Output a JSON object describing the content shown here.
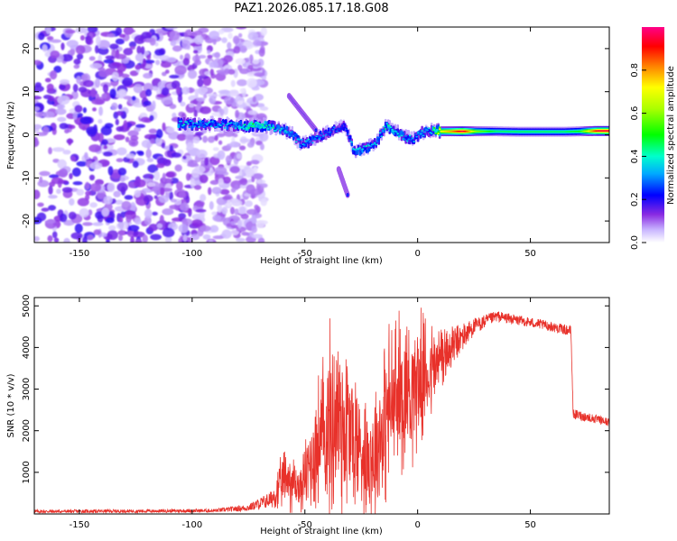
{
  "title": "PAZ1.2026.085.17.18.G08",
  "chart_data": [
    {
      "type": "heatmap",
      "xlabel": "Height of straight line (km)",
      "ylabel": "Frequency (Hz)",
      "xlim": [
        -170,
        85
      ],
      "ylim": [
        -25,
        25
      ],
      "xticks": [
        -150,
        -100,
        -50,
        0,
        50
      ],
      "xtick_labels": [
        "-150",
        "-100",
        "-50",
        "0",
        "50"
      ],
      "yticks": [
        -20,
        -10,
        0,
        10,
        20
      ],
      "ytick_labels": [
        "-20",
        "-10",
        "0",
        "10",
        "20"
      ],
      "noise_region_x": [
        -170,
        -80
      ],
      "ridge": [
        {
          "x": -106,
          "f": 2.5,
          "a": 0.35
        },
        {
          "x": -98,
          "f": 2.5,
          "a": 0.3
        },
        {
          "x": -90,
          "f": 2.5,
          "a": 0.28
        },
        {
          "x": -82,
          "f": 2.3,
          "a": 0.3
        },
        {
          "x": -75,
          "f": 2.0,
          "a": 0.4
        },
        {
          "x": -68,
          "f": 2.2,
          "a": 0.4
        },
        {
          "x": -62,
          "f": 1.5,
          "a": 0.32
        },
        {
          "x": -56,
          "f": 0.5,
          "a": 0.3
        },
        {
          "x": -52,
          "f": -2.0,
          "a": 0.3
        },
        {
          "x": -48,
          "f": -1.5,
          "a": 0.3
        },
        {
          "x": -44,
          "f": -0.5,
          "a": 0.28
        },
        {
          "x": -40,
          "f": 0.5,
          "a": 0.25
        },
        {
          "x": -36,
          "f": 1.5,
          "a": 0.25
        },
        {
          "x": -32,
          "f": 2.0,
          "a": 0.22
        },
        {
          "x": -28,
          "f": -4.0,
          "a": 0.32
        },
        {
          "x": -22,
          "f": -3.0,
          "a": 0.33
        },
        {
          "x": -18,
          "f": -1.5,
          "a": 0.3
        },
        {
          "x": -14,
          "f": 2.0,
          "a": 0.35
        },
        {
          "x": -10,
          "f": 1.0,
          "a": 0.35
        },
        {
          "x": -6,
          "f": -0.5,
          "a": 0.3
        },
        {
          "x": -2,
          "f": -1.0,
          "a": 0.3
        },
        {
          "x": 2,
          "f": 0.5,
          "a": 0.3
        },
        {
          "x": 6,
          "f": 1.0,
          "a": 0.3
        },
        {
          "x": 10,
          "f": 0.8,
          "a": 0.7
        },
        {
          "x": 15,
          "f": 0.8,
          "a": 0.8
        },
        {
          "x": 20,
          "f": 0.8,
          "a": 0.97
        },
        {
          "x": 26,
          "f": 0.8,
          "a": 0.6
        },
        {
          "x": 35,
          "f": 0.8,
          "a": 0.45
        },
        {
          "x": 45,
          "f": 0.7,
          "a": 0.45
        },
        {
          "x": 55,
          "f": 0.7,
          "a": 0.45
        },
        {
          "x": 65,
          "f": 0.7,
          "a": 0.45
        },
        {
          "x": 72,
          "f": 0.8,
          "a": 0.5
        },
        {
          "x": 80,
          "f": 0.9,
          "a": 0.95
        }
      ],
      "branches": [
        {
          "x0": -57,
          "f0": 9,
          "x1": -45,
          "f1": 1,
          "a": 0.3
        },
        {
          "x0": -35,
          "f0": -8,
          "x1": -31,
          "f1": -14,
          "a": 0.3
        }
      ],
      "colorbar": {
        "label": "Normalized spectral amplitude",
        "range": [
          0,
          1
        ],
        "ticks": [
          0.0,
          0.2,
          0.4,
          0.6,
          0.8
        ],
        "tick_labels": [
          "0.0",
          "0.2",
          "0.4",
          "0.6",
          "0.8"
        ]
      }
    },
    {
      "type": "line",
      "xlabel": "Height of straight line (km)",
      "ylabel": "SNR (10 * v/v)",
      "xlim": [
        -170,
        85
      ],
      "ylim": [
        0,
        5200
      ],
      "xticks": [
        -150,
        -100,
        -50,
        0,
        50
      ],
      "xtick_labels": [
        "-150",
        "-100",
        "-50",
        "0",
        "50"
      ],
      "yticks": [
        1000,
        2000,
        3000,
        4000,
        5000
      ],
      "ytick_labels": [
        "1000",
        "2000",
        "3000",
        "4000",
        "5000"
      ],
      "color": "#e8312a",
      "profile": [
        {
          "x": -170,
          "snr": 60,
          "noise": 40
        },
        {
          "x": -120,
          "snr": 70,
          "noise": 40
        },
        {
          "x": -90,
          "snr": 80,
          "noise": 45
        },
        {
          "x": -75,
          "snr": 150,
          "noise": 80
        },
        {
          "x": -65,
          "snr": 350,
          "noise": 200
        },
        {
          "x": -58,
          "snr": 900,
          "noise": 800
        },
        {
          "x": -52,
          "snr": 600,
          "noise": 500
        },
        {
          "x": -45,
          "snr": 1600,
          "noise": 1500
        },
        {
          "x": -35,
          "snr": 2400,
          "noise": 2600
        },
        {
          "x": -25,
          "snr": 1500,
          "noise": 1400
        },
        {
          "x": -20,
          "snr": 1400,
          "noise": 1500
        },
        {
          "x": -12,
          "snr": 2600,
          "noise": 2000
        },
        {
          "x": -5,
          "snr": 3000,
          "noise": 1800
        },
        {
          "x": 5,
          "snr": 3400,
          "noise": 1200
        },
        {
          "x": 15,
          "snr": 4000,
          "noise": 500
        },
        {
          "x": 25,
          "snr": 4500,
          "noise": 200
        },
        {
          "x": 35,
          "snr": 4750,
          "noise": 130
        },
        {
          "x": 45,
          "snr": 4650,
          "noise": 120
        },
        {
          "x": 55,
          "snr": 4550,
          "noise": 120
        },
        {
          "x": 68,
          "snr": 4400,
          "noise": 120
        },
        {
          "x": 69,
          "snr": 2400,
          "noise": 120
        },
        {
          "x": 85,
          "snr": 2200,
          "noise": 100
        }
      ]
    }
  ]
}
